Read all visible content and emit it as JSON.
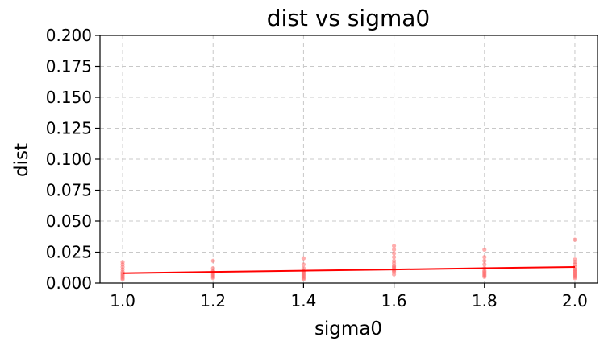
{
  "chart_data": {
    "type": "scatter",
    "title": "dist vs sigma0",
    "xlabel": "sigma0",
    "ylabel": "dist",
    "xlim": [
      0.95,
      2.05
    ],
    "ylim": [
      0.0,
      0.2
    ],
    "xticks": [
      "1.0",
      "1.2",
      "1.4",
      "1.6",
      "1.8",
      "2.0"
    ],
    "yticks": [
      "0.000",
      "0.025",
      "0.050",
      "0.075",
      "0.100",
      "0.125",
      "0.150",
      "0.175",
      "0.200"
    ],
    "grid": true,
    "series": [
      {
        "kind": "scatter",
        "color": "#ff6b6b",
        "points": [
          {
            "x": 1.0,
            "y": 0.017
          },
          {
            "x": 1.0,
            "y": 0.015
          },
          {
            "x": 1.0,
            "y": 0.013
          },
          {
            "x": 1.0,
            "y": 0.011
          },
          {
            "x": 1.0,
            "y": 0.009
          },
          {
            "x": 1.0,
            "y": 0.008
          },
          {
            "x": 1.0,
            "y": 0.007
          },
          {
            "x": 1.0,
            "y": 0.006
          },
          {
            "x": 1.0,
            "y": 0.005
          },
          {
            "x": 1.0,
            "y": 0.004
          },
          {
            "x": 1.0,
            "y": 0.003
          },
          {
            "x": 1.2,
            "y": 0.018
          },
          {
            "x": 1.2,
            "y": 0.012
          },
          {
            "x": 1.2,
            "y": 0.01
          },
          {
            "x": 1.2,
            "y": 0.009
          },
          {
            "x": 1.2,
            "y": 0.008
          },
          {
            "x": 1.2,
            "y": 0.007
          },
          {
            "x": 1.2,
            "y": 0.006
          },
          {
            "x": 1.2,
            "y": 0.005
          },
          {
            "x": 1.2,
            "y": 0.004
          },
          {
            "x": 1.4,
            "y": 0.02
          },
          {
            "x": 1.4,
            "y": 0.015
          },
          {
            "x": 1.4,
            "y": 0.012
          },
          {
            "x": 1.4,
            "y": 0.01
          },
          {
            "x": 1.4,
            "y": 0.009
          },
          {
            "x": 1.4,
            "y": 0.008
          },
          {
            "x": 1.4,
            "y": 0.007
          },
          {
            "x": 1.4,
            "y": 0.006
          },
          {
            "x": 1.4,
            "y": 0.005
          },
          {
            "x": 1.4,
            "y": 0.004
          },
          {
            "x": 1.4,
            "y": 0.003
          },
          {
            "x": 1.6,
            "y": 0.03
          },
          {
            "x": 1.6,
            "y": 0.027
          },
          {
            "x": 1.6,
            "y": 0.024
          },
          {
            "x": 1.6,
            "y": 0.021
          },
          {
            "x": 1.6,
            "y": 0.018
          },
          {
            "x": 1.6,
            "y": 0.016
          },
          {
            "x": 1.6,
            "y": 0.014
          },
          {
            "x": 1.6,
            "y": 0.013
          },
          {
            "x": 1.6,
            "y": 0.012
          },
          {
            "x": 1.6,
            "y": 0.011
          },
          {
            "x": 1.6,
            "y": 0.01
          },
          {
            "x": 1.6,
            "y": 0.009
          },
          {
            "x": 1.6,
            "y": 0.007
          },
          {
            "x": 1.8,
            "y": 0.027
          },
          {
            "x": 1.8,
            "y": 0.021
          },
          {
            "x": 1.8,
            "y": 0.018
          },
          {
            "x": 1.8,
            "y": 0.015
          },
          {
            "x": 1.8,
            "y": 0.012
          },
          {
            "x": 1.8,
            "y": 0.01
          },
          {
            "x": 1.8,
            "y": 0.009
          },
          {
            "x": 1.8,
            "y": 0.008
          },
          {
            "x": 1.8,
            "y": 0.007
          },
          {
            "x": 1.8,
            "y": 0.006
          },
          {
            "x": 1.8,
            "y": 0.005
          },
          {
            "x": 2.0,
            "y": 0.035
          },
          {
            "x": 2.0,
            "y": 0.019
          },
          {
            "x": 2.0,
            "y": 0.017
          },
          {
            "x": 2.0,
            "y": 0.015
          },
          {
            "x": 2.0,
            "y": 0.013
          },
          {
            "x": 2.0,
            "y": 0.011
          },
          {
            "x": 2.0,
            "y": 0.01
          },
          {
            "x": 2.0,
            "y": 0.009
          },
          {
            "x": 2.0,
            "y": 0.008
          },
          {
            "x": 2.0,
            "y": 0.007
          },
          {
            "x": 2.0,
            "y": 0.006
          },
          {
            "x": 2.0,
            "y": 0.005
          },
          {
            "x": 2.0,
            "y": 0.004
          }
        ]
      },
      {
        "kind": "line",
        "color": "#ff0000",
        "points": [
          {
            "x": 1.0,
            "y": 0.008
          },
          {
            "x": 1.2,
            "y": 0.009
          },
          {
            "x": 1.4,
            "y": 0.01
          },
          {
            "x": 1.6,
            "y": 0.011
          },
          {
            "x": 1.8,
            "y": 0.012
          },
          {
            "x": 2.0,
            "y": 0.013
          }
        ]
      }
    ]
  }
}
